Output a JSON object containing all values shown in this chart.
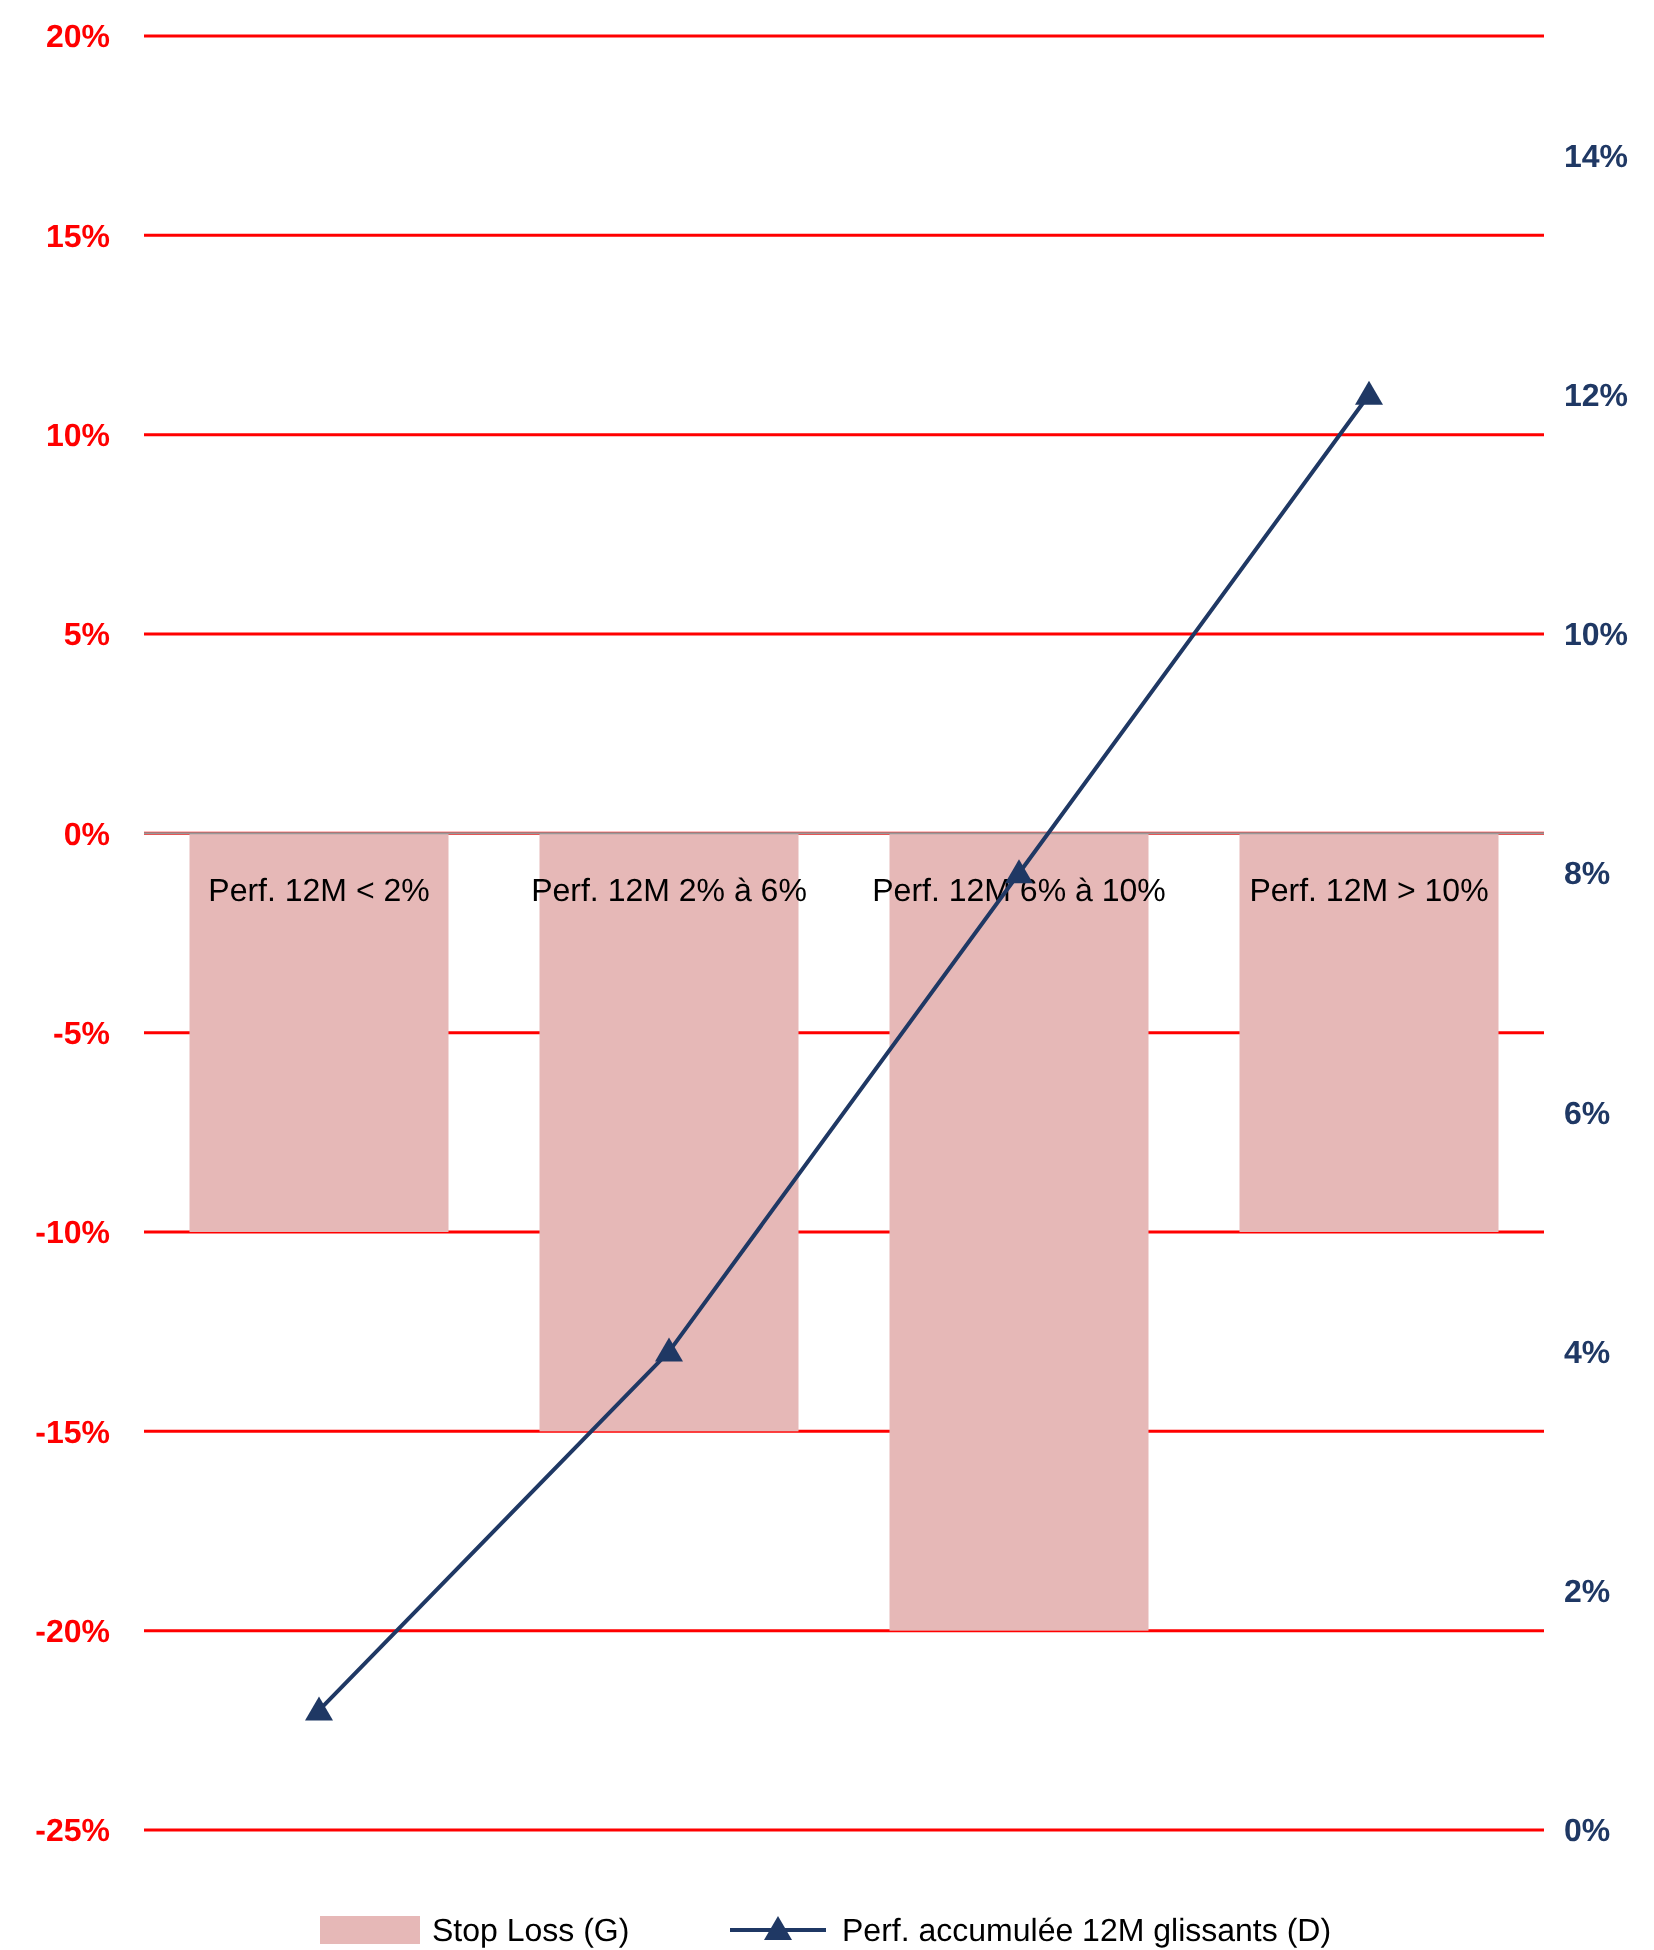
{
  "chart_data": {
    "type": "bar",
    "categories": [
      "Perf. 12M < 2%",
      "Perf. 12M 2% à 6%",
      "Perf. 12M 6% à 10%",
      "Perf. 12M > 10%"
    ],
    "series": [
      {
        "name": "Stop Loss (G)",
        "color": "#e6b8b7",
        "values": [
          -10,
          -15,
          -20,
          -10
        ]
      },
      {
        "name": "Perf. accumulée 12M glissants (D)",
        "type": "line",
        "axis": "y2",
        "color": "#1f3864",
        "marker": "triangle",
        "values": [
          1,
          4,
          8,
          12
        ]
      }
    ],
    "ylim": [
      -25,
      20
    ],
    "yticks": [
      {
        "value": -25,
        "label": "-25%"
      },
      {
        "value": -20,
        "label": "-20%"
      },
      {
        "value": -15,
        "label": "-15%"
      },
      {
        "value": -10,
        "label": "-10%"
      },
      {
        "value": -5,
        "label": "-5%"
      },
      {
        "value": 0,
        "label": "0%"
      },
      {
        "value": 5,
        "label": "5%"
      },
      {
        "value": 10,
        "label": "10%"
      },
      {
        "value": 15,
        "label": "15%"
      },
      {
        "value": 20,
        "label": "20%"
      }
    ],
    "y2lim": [
      0,
      15
    ],
    "y2ticks": [
      {
        "value": 0,
        "label": "0%"
      },
      {
        "value": 2,
        "label": "2%"
      },
      {
        "value": 4,
        "label": "4%"
      },
      {
        "value": 6,
        "label": "6%"
      },
      {
        "value": 8,
        "label": "8%"
      },
      {
        "value": 10,
        "label": "10%"
      },
      {
        "value": 12,
        "label": "12%"
      },
      {
        "value": 14,
        "label": "14%"
      }
    ],
    "grid": "y",
    "legend": "bottom"
  }
}
